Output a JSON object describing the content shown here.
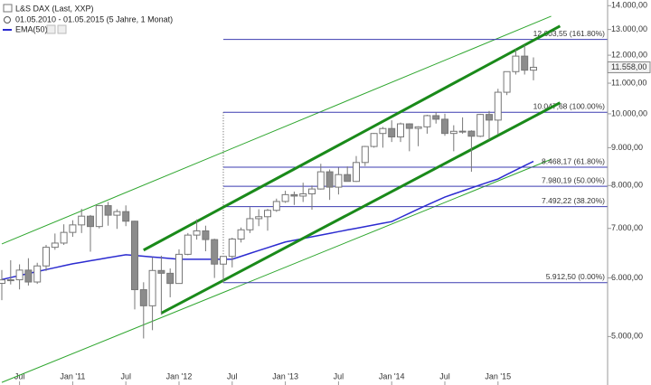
{
  "chart_data": {
    "type": "candlestick",
    "title": "L&S DAX (Last, XXP)",
    "subtitle": "01.05.2010 - 01.05.2015 (5 Jahre, 1 Monat)",
    "log_scale": true,
    "grid": false,
    "up_color": "#ffffff",
    "down_color": "#8c8c8c",
    "edge_color": "#777777",
    "x": [
      "2010-05",
      "2010-06",
      "2010-07",
      "2010-08",
      "2010-09",
      "2010-10",
      "2010-11",
      "2010-12",
      "2011-01",
      "2011-02",
      "2011-03",
      "2011-04",
      "2011-05",
      "2011-06",
      "2011-07",
      "2011-08",
      "2011-09",
      "2011-10",
      "2011-11",
      "2011-12",
      "2012-01",
      "2012-02",
      "2012-03",
      "2012-04",
      "2012-05",
      "2012-06",
      "2012-07",
      "2012-08",
      "2012-09",
      "2012-10",
      "2012-11",
      "2012-12",
      "2013-01",
      "2013-02",
      "2013-03",
      "2013-04",
      "2013-05",
      "2013-06",
      "2013-07",
      "2013-08",
      "2013-09",
      "2013-10",
      "2013-11",
      "2013-12",
      "2014-01",
      "2014-02",
      "2014-03",
      "2014-04",
      "2014-05",
      "2014-06",
      "2014-07",
      "2014-08",
      "2014-09",
      "2014-10",
      "2014-11",
      "2014-12",
      "2015-01",
      "2015-02",
      "2015-03",
      "2015-04",
      "2015-05"
    ],
    "open": [
      5900,
      5964,
      5966,
      6148,
      5925,
      6229,
      6601,
      6688,
      6914,
      7077,
      7272,
      7041,
      7514,
      7294,
      7376,
      7159,
      5785,
      5502,
      6141,
      6088,
      5898,
      6458,
      6856,
      6947,
      6761,
      6264,
      6416,
      6772,
      6970,
      7216,
      7260,
      7405,
      7612,
      7776,
      7741,
      7795,
      7914,
      8349,
      7959,
      8276,
      8103,
      8594,
      9033,
      9406,
      9552,
      9306,
      9692,
      9556,
      9603,
      9943,
      9833,
      9407,
      9470,
      9474,
      9326,
      9980,
      9806,
      10694,
      11402,
      11966,
      11454
    ],
    "high": [
      6150,
      6340,
      6260,
      6380,
      6290,
      6650,
      6890,
      7090,
      7180,
      7440,
      7300,
      7530,
      7600,
      7430,
      7520,
      7170,
      5920,
      6400,
      6430,
      6180,
      6560,
      6900,
      7200,
      7060,
      6780,
      6410,
      6800,
      7020,
      7480,
      7430,
      7440,
      7680,
      7870,
      7850,
      8070,
      8000,
      8560,
      8410,
      8460,
      8490,
      8770,
      9050,
      9420,
      9600,
      9800,
      9730,
      9710,
      9620,
      9970,
      10050,
      10000,
      9650,
      9890,
      9500,
      10000,
      10090,
      10810,
      11410,
      12220,
      12390,
      11920
    ],
    "low": [
      5600,
      5880,
      5790,
      5860,
      5890,
      6130,
      6550,
      6650,
      6820,
      6900,
      6510,
      7000,
      7060,
      6990,
      7050,
      5440,
      4970,
      5100,
      5350,
      5650,
      5900,
      6440,
      6760,
      6520,
      6000,
      5910,
      6200,
      6700,
      6900,
      7050,
      6950,
      7370,
      7580,
      7530,
      7600,
      7420,
      7900,
      7650,
      7780,
      8100,
      8090,
      8500,
      9000,
      9000,
      9160,
      9160,
      8900,
      9040,
      9400,
      9700,
      9340,
      8900,
      9400,
      8350,
      9300,
      9220,
      9380,
      10600,
      11300,
      11300,
      11100
    ],
    "close": [
      5964,
      5966,
      6148,
      5925,
      6229,
      6601,
      6688,
      6914,
      7077,
      7272,
      7041,
      7514,
      7294,
      7376,
      7159,
      5785,
      5502,
      6141,
      6088,
      5898,
      6458,
      6856,
      6947,
      6761,
      6264,
      6416,
      6772,
      6970,
      7216,
      7260,
      7405,
      7612,
      7776,
      7741,
      7795,
      7914,
      8349,
      7959,
      8276,
      8103,
      8594,
      9033,
      9406,
      9552,
      9306,
      9692,
      9556,
      9603,
      9943,
      9833,
      9407,
      9470,
      9474,
      9326,
      9980,
      9806,
      10694,
      11402,
      11966,
      11454,
      11558
    ],
    "series": [
      {
        "name": "EMA(50)",
        "color": "#2b2bd0",
        "values": [
          5970,
          6008,
          6045,
          6083,
          6120,
          6158,
          6195,
          6233,
          6270,
          6300,
          6330,
          6360,
          6390,
          6420,
          6450,
          6435,
          6420,
          6405,
          6390,
          6375,
          6360,
          6360,
          6360,
          6360,
          6360,
          6360,
          6360,
          6418,
          6477,
          6535,
          6593,
          6652,
          6710,
          6747,
          6783,
          6820,
          6857,
          6893,
          6930,
          6967,
          7003,
          7040,
          7077,
          7113,
          7150,
          7245,
          7339,
          7434,
          7529,
          7623,
          7718,
          7792,
          7866,
          7940,
          8015,
          8089,
          8163,
          8279,
          8394,
          8510,
          8625
        ]
      }
    ],
    "ylim": [
      4300,
      14250
    ],
    "yticks": [
      {
        "value": 5000,
        "label": "5.000,00"
      },
      {
        "value": 6000,
        "label": "6.000,00"
      },
      {
        "value": 7000,
        "label": "7.000,00"
      },
      {
        "value": 8000,
        "label": "8.000,00"
      },
      {
        "value": 9000,
        "label": "9.000,00"
      },
      {
        "value": 10000,
        "label": "10.000,00"
      },
      {
        "value": 11000,
        "label": "11.000,00"
      },
      {
        "value": 12000,
        "label": "12.000,00"
      },
      {
        "value": 13000,
        "label": "13.000,00"
      },
      {
        "value": 14000,
        "label": "14.000,00"
      }
    ],
    "xticks": [
      {
        "value": "2010-07",
        "label": "Jul"
      },
      {
        "value": "2011-01",
        "label": "Jan '11"
      },
      {
        "value": "2011-07",
        "label": "Jul"
      },
      {
        "value": "2012-01",
        "label": "Jan '12"
      },
      {
        "value": "2012-07",
        "label": "Jul"
      },
      {
        "value": "2013-01",
        "label": "Jan '13"
      },
      {
        "value": "2013-07",
        "label": "Jul"
      },
      {
        "value": "2014-01",
        "label": "Jan '14"
      },
      {
        "value": "2014-07",
        "label": "Jul"
      },
      {
        "value": "2015-01",
        "label": "Jan '15"
      }
    ],
    "last_price": {
      "value": 11558,
      "label": "11.558,00"
    },
    "fib_start": "2012-06",
    "fib_color": "#3b3bb0",
    "fib_levels": [
      {
        "value": 12603.55,
        "label": "12.603,55 (161.80%)"
      },
      {
        "value": 10047.68,
        "label": "10.047,68 (100.00%)"
      },
      {
        "value": 8468.17,
        "label": "8.468,17 (61.80%)"
      },
      {
        "value": 7980.19,
        "label": "7.980,19 (50.00%)"
      },
      {
        "value": 7492.22,
        "label": "7.492,22 (38.20%)"
      },
      {
        "value": 5912.5,
        "label": "5.912,50 (0.00%)"
      }
    ],
    "trendlines": [
      {
        "color": "#2ea62e",
        "width": 1,
        "x": [
          "2010-05",
          "2015-07"
        ],
        "values": [
          6670,
          13550
        ]
      },
      {
        "color": "#2ea62e",
        "width": 1,
        "x": [
          "2010-05",
          "2015-07"
        ],
        "values": [
          4335,
          8680
        ]
      },
      {
        "color": "#1a8a1a",
        "width": 3,
        "x": [
          "2011-09",
          "2015-08"
        ],
        "values": [
          6543,
          13140
        ]
      },
      {
        "color": "#1a8a1a",
        "width": 3,
        "x": [
          "2011-11",
          "2015-08"
        ],
        "values": [
          5378,
          10350
        ]
      }
    ]
  }
}
